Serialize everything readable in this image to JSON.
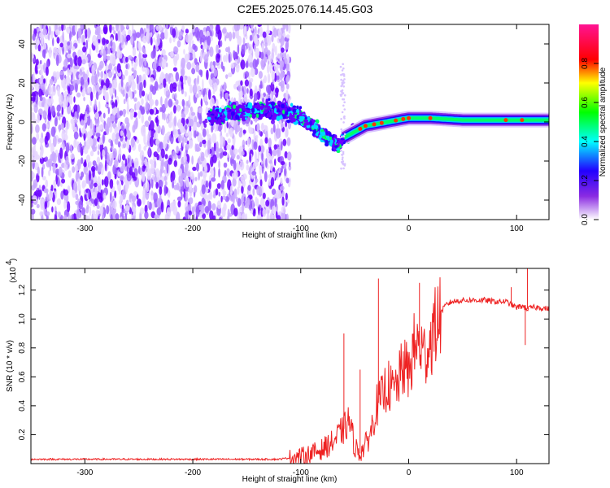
{
  "title": "C2E5.2025.076.14.45.G03",
  "chart_data": [
    {
      "type": "heatmap",
      "xlabel": "Height of straight line (km)",
      "ylabel": "Frequency (Hz)",
      "xlim": [
        -350,
        130
      ],
      "ylim": [
        -50,
        50
      ],
      "xticks": [
        -300,
        -200,
        -100,
        0,
        100
      ],
      "yticks": [
        -40,
        -20,
        0,
        20,
        40
      ],
      "colorbar": {
        "label": "Normalized spectral amplitude",
        "range": [
          0.0,
          1.0
        ],
        "ticks": [
          0.0,
          0.2,
          0.4,
          0.6,
          0.8
        ],
        "colormap": [
          "#ffffff",
          "#6a00ff",
          "#0000ff",
          "#00ffff",
          "#00ff00",
          "#ffff00",
          "#ff0000",
          "#ff1493"
        ]
      },
      "ridge": {
        "x": [
          -180,
          -160,
          -140,
          -120,
          -100,
          -90,
          -80,
          -70,
          -65,
          -60,
          -50,
          -40,
          -30,
          -20,
          -10,
          0,
          20,
          50,
          80,
          100,
          130
        ],
        "y": [
          3,
          5,
          6,
          6,
          3,
          -2,
          -6,
          -10,
          -12,
          -8,
          -5,
          -2,
          -1,
          0,
          1,
          2,
          2,
          1,
          1,
          1,
          1
        ]
      },
      "noise_region": [
        -350,
        -120
      ]
    },
    {
      "type": "line",
      "xlabel": "Height of straight line (km)",
      "ylabel": "SNR (10 * v/v)",
      "yscale_label": "(x10",
      "yscale_exp": "4",
      "xlim": [
        -350,
        130
      ],
      "ylim": [
        0,
        1.35
      ],
      "xticks": [
        -300,
        -200,
        -100,
        0,
        100
      ],
      "yticks": [
        0.2,
        0.4,
        0.6,
        0.8,
        1.0,
        1.2
      ],
      "series": [
        {
          "color": "#ee2222",
          "x": [
            -350,
            -300,
            -250,
            -200,
            -150,
            -120,
            -100,
            -90,
            -80,
            -70,
            -60,
            -55,
            -50,
            -45,
            -40,
            -35,
            -30,
            -25,
            -20,
            -15,
            -10,
            -5,
            0,
            5,
            10,
            15,
            20,
            25,
            30,
            35,
            40,
            50,
            60,
            70,
            80,
            90,
            95,
            100,
            105,
            110,
            115,
            120,
            130
          ],
          "y": [
            0.03,
            0.03,
            0.03,
            0.03,
            0.03,
            0.03,
            0.05,
            0.07,
            0.1,
            0.15,
            0.24,
            0.3,
            0.12,
            0.07,
            0.13,
            0.22,
            0.4,
            0.45,
            0.55,
            0.5,
            0.55,
            0.68,
            0.62,
            0.8,
            0.82,
            0.75,
            0.85,
            0.95,
            1.05,
            1.1,
            1.12,
            1.13,
            1.13,
            1.13,
            1.12,
            1.12,
            1.1,
            1.08,
            1.09,
            1.07,
            1.08,
            1.08,
            1.07
          ]
        }
      ]
    }
  ]
}
